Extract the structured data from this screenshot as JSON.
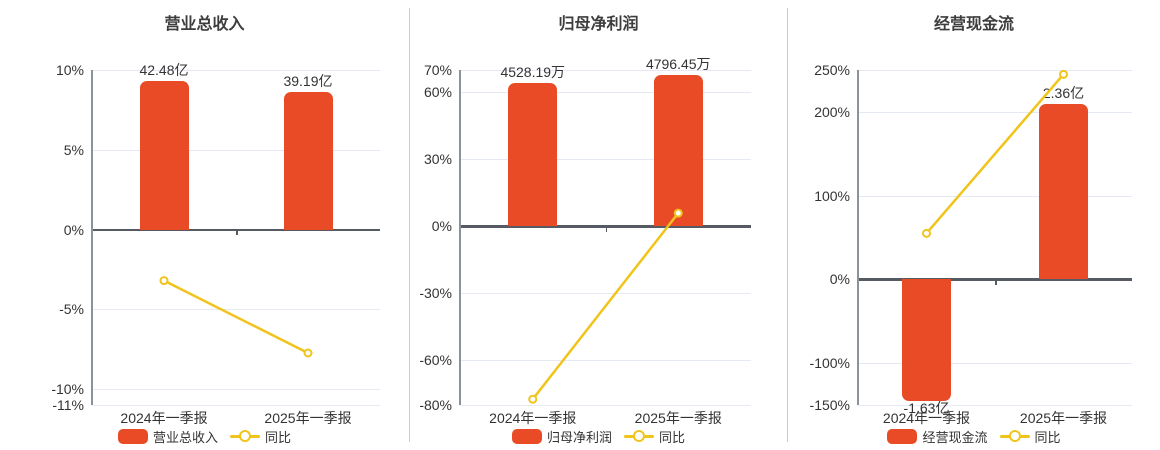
{
  "colors": {
    "bar": "#e84b25",
    "line": "#f0c41b",
    "axis": "#565b63",
    "axis_light": "#8c929a",
    "grid": "#e4e9f3",
    "separator": "#cccccc",
    "text": "#333333",
    "title": "#3d3d3d",
    "background": "#ffffff"
  },
  "chart_data": [
    {
      "type": "bar+line",
      "title": "营业总收入",
      "categories": [
        "2024年一季报",
        "2025年一季报"
      ],
      "bar_series": {
        "name": "营业总收入",
        "unit": "亿",
        "values": [
          42.48,
          39.19
        ],
        "labels": [
          "42.48亿",
          "39.19亿"
        ]
      },
      "line_series": {
        "name": "同比",
        "unit": "%",
        "values": [
          -3.2,
          -7.74
        ]
      },
      "y_ticks": [
        {
          "value": 10,
          "label": "10%"
        },
        {
          "value": 5,
          "label": "5%"
        },
        {
          "value": 0,
          "label": "0%"
        },
        {
          "value": -5,
          "label": "-5%"
        },
        {
          "value": -10,
          "label": "-10%"
        },
        {
          "value": -11,
          "label": "-11%"
        }
      ],
      "ylim": [
        -11,
        10
      ],
      "bar_axis": {
        "min": -50.2,
        "max": 45.6
      },
      "grid": true,
      "legend_position": "bottom",
      "legend": [
        "营业总收入",
        "同比"
      ]
    },
    {
      "type": "bar+line",
      "title": "归母净利润",
      "categories": [
        "2024年一季报",
        "2025年一季报"
      ],
      "bar_series": {
        "name": "归母净利润",
        "unit": "万",
        "values": [
          4528.19,
          4796.45
        ],
        "labels": [
          "4528.19万",
          "4796.45万"
        ]
      },
      "line_series": {
        "name": "同比",
        "unit": "%",
        "values": [
          -77.4,
          5.93
        ]
      },
      "y_ticks": [
        {
          "value": 70,
          "label": "70%"
        },
        {
          "value": 60,
          "label": "60%"
        },
        {
          "value": 30,
          "label": "30%"
        },
        {
          "value": 0,
          "label": "0%"
        },
        {
          "value": -30,
          "label": "-30%"
        },
        {
          "value": -60,
          "label": "-60%"
        },
        {
          "value": -80,
          "label": "-80%"
        }
      ],
      "ylim": [
        -80,
        70
      ],
      "bar_axis": {
        "min": -5646,
        "max": 4940
      },
      "grid": true,
      "legend_position": "bottom",
      "legend": [
        "归母净利润",
        "同比"
      ]
    },
    {
      "type": "bar+line",
      "title": "经营现金流",
      "categories": [
        "2024年一季报",
        "2025年一季报"
      ],
      "bar_series": {
        "name": "经营现金流",
        "unit": "亿",
        "values": [
          -1.63,
          2.36
        ],
        "labels": [
          "-1.63亿",
          "2.36亿"
        ]
      },
      "line_series": {
        "name": "同比",
        "unit": "%",
        "values": [
          55,
          244.8
        ]
      },
      "y_ticks": [
        {
          "value": 250,
          "label": "250%"
        },
        {
          "value": 200,
          "label": "200%"
        },
        {
          "value": 100,
          "label": "100%"
        },
        {
          "value": 0,
          "label": "0%"
        },
        {
          "value": -100,
          "label": "-100%"
        },
        {
          "value": -150,
          "label": "-150%"
        }
      ],
      "ylim": [
        -150,
        250
      ],
      "bar_axis": {
        "min": -1.69,
        "max": 2.82
      },
      "grid": true,
      "legend_position": "bottom",
      "legend": [
        "经营现金流",
        "同比"
      ]
    }
  ]
}
